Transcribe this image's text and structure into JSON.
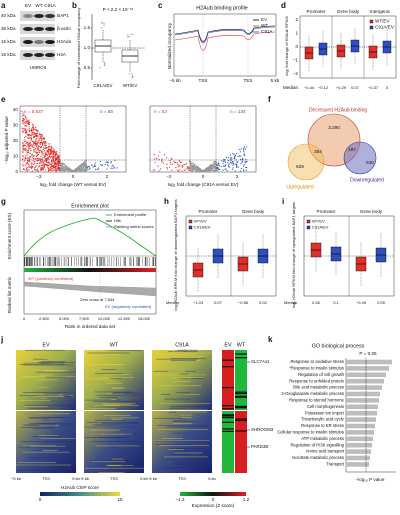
{
  "panels": {
    "a": {
      "label": "a",
      "kda": [
        "40 kDa",
        "35 kDa",
        "15 kDa",
        "15 kDa"
      ],
      "lanes": [
        "EV",
        "WT",
        "C91A"
      ],
      "proteins": [
        "BAP1",
        "β-actin",
        "H2Aub",
        "H2A"
      ],
      "cell_line": "UMRC6"
    },
    "b": {
      "label": "b",
      "ylabel": "Fold change of normalized H2Aub occupancy",
      "pvalue": "P < 2.2 × 10⁻¹⁶",
      "yticks": [
        "1.5",
        "1.0",
        "0.5"
      ],
      "categories": [
        "C91A/EV",
        "WT/EV"
      ]
    },
    "c": {
      "label": "c",
      "title": "H2Aub binding profile",
      "ylabel": "Normalized occupancy",
      "legend": [
        "EV",
        "WT",
        "C91A"
      ],
      "xticks": [
        "−5 kb",
        "TSS",
        "TES",
        "5 kb"
      ]
    },
    "d": {
      "label": "d",
      "headers": [
        "Promoter",
        "Gene body",
        "Intergenic"
      ],
      "ylabel": "log₂ fold change of H2Aub RPKM",
      "legend": [
        "WT/EV",
        "C91A/EV"
      ],
      "yticks": [
        "2",
        "1",
        "0",
        "−1",
        "−2"
      ],
      "median_label": "Median",
      "medians": [
        "−0.44",
        "−0.12",
        "−0.29",
        "0.07",
        "−0.37",
        "0"
      ]
    },
    "e": {
      "label": "e",
      "ylabel": "−log₁₀ adjusted P value",
      "yticks": [
        "40",
        "30",
        "20",
        "10",
        "0"
      ],
      "xticks": [
        "−2",
        "0",
        "2"
      ],
      "plots": [
        {
          "xlabel": "log₂ fold change (WT versus EV)",
          "n_left": "n = 5,637",
          "n_right": "n = 55"
        },
        {
          "xlabel": "log₂ fold change (C91A versus EV)",
          "n_left": "n = 53",
          "n_right": "n = 134"
        }
      ]
    },
    "f": {
      "label": "f",
      "title": "Decreased H2Aub binding",
      "counts": [
        "3,290",
        "629",
        "354",
        "187",
        "530"
      ],
      "up": "Upregulated",
      "down": "Downregulated"
    },
    "g": {
      "label": "g",
      "title": "Enrichment plot",
      "legend": [
        "Enrichment profile",
        "Hits",
        "Ranking metric scores"
      ],
      "ylabel_es": "Enrichment score (ES)",
      "ylabel_rank": "Ranked list metric",
      "pos": "WT (positively correlated)",
      "neg": "EV (negatively correlated)",
      "zero_cross": "Zero cross at 7,644",
      "xlabel": "Rank in ordered data set",
      "xticks": [
        "0",
        "2,500",
        "5,000",
        "7,500",
        "10,000",
        "12,500",
        "15,000"
      ]
    },
    "h": {
      "label": "h",
      "headers": [
        "Promoter",
        "Gene body"
      ],
      "legend": [
        "WT/EV",
        "C91A/EV"
      ],
      "ylabel": "log₂ H2Aub RPKM fold change of downregulated BAP1 targets",
      "median_label": "Median",
      "medians": [
        "−1.03",
        "0.07",
        "−0.56",
        "0.02"
      ]
    },
    "i": {
      "label": "i",
      "headers": [
        "Promoter",
        "Gene body"
      ],
      "legend": [
        "WT/EV",
        "C91A/EV"
      ],
      "ylabel": "log₂ H2Aub RPKM fold change of upregulated BAP1 targets",
      "median_label": "Median",
      "medians": [
        "0.36",
        "0.1",
        "−0.49",
        "0.05"
      ]
    },
    "j": {
      "label": "j",
      "columns": [
        "EV",
        "WT",
        "C91A"
      ],
      "expr_columns": [
        "EV",
        "WT"
      ],
      "genes": [
        "SLC7A11",
        "SHROOM3",
        "PARD3B"
      ],
      "xticks": [
        "−5 kb",
        "TSS",
        "5 kb"
      ],
      "chip_legend": "H2Aub ChIP score",
      "chip_range": [
        "0",
        "15"
      ],
      "expr_legend": "Expression (Z score)",
      "expr_range": [
        "−1.2",
        "0",
        "1.2"
      ]
    },
    "k": {
      "label": "k",
      "title": "GO biological process",
      "pline": "P = 0.05",
      "xlabel": "−log₁₀ P value",
      "terms": [
        "Response to oxidative stress",
        "*Response to insulin stimulus",
        "Regulation of cell growth",
        "Response to unfolded protein",
        "Bile acid metabolic process",
        "2-Oxoglutarate metabolic process",
        "Response to steroid hormone",
        "Cell morphogenesis",
        "Potassium ion import",
        "Tricarboxylic acid cycle",
        "Response to ER stress",
        "Cellular response to insulin stimulus",
        "ATP metabolic process",
        "Regulation of PI3K signalling",
        "Amino acid transport",
        "Isocitrate metabolic process",
        "Transport"
      ]
    }
  }
}
